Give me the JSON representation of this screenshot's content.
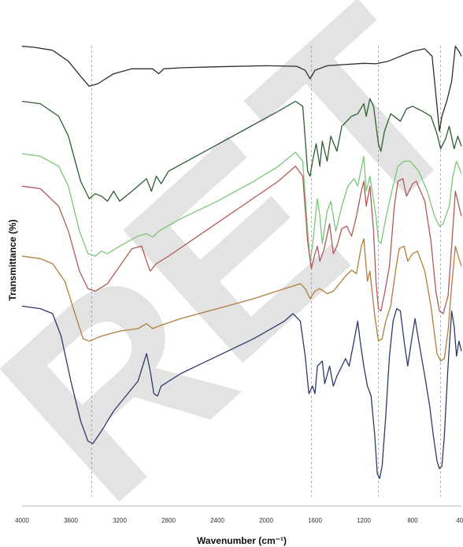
{
  "chart_data": {
    "type": "line",
    "xlabel": "Wavenumber (cm⁻¹)",
    "ylabel": "Transmittance (%)",
    "xlim": [
      4000,
      400
    ],
    "x_reversed": true,
    "x_ticks": [
      4000,
      3600,
      3200,
      2800,
      2400,
      2000,
      1600,
      1200,
      800,
      400
    ],
    "y_ticks_shown": false,
    "ylim": [
      0,
      100
    ],
    "grid": false,
    "reference_lines_x": [
      3430,
      1630,
      1080,
      570
    ],
    "watermark": "RET",
    "series": [
      {
        "color": "#2e2e2e",
        "points": [
          [
            4000,
            92
          ],
          [
            3900,
            91.8
          ],
          [
            3750,
            91.2
          ],
          [
            3620,
            89
          ],
          [
            3520,
            86
          ],
          [
            3450,
            84
          ],
          [
            3380,
            84.5
          ],
          [
            3250,
            86.5
          ],
          [
            3100,
            87.5
          ],
          [
            2930,
            87.5
          ],
          [
            2880,
            86.5
          ],
          [
            2840,
            87.5
          ],
          [
            2700,
            87.7
          ],
          [
            2400,
            87.9
          ],
          [
            2000,
            88.1
          ],
          [
            1750,
            88
          ],
          [
            1680,
            87.2
          ],
          [
            1640,
            85.5
          ],
          [
            1600,
            87.2
          ],
          [
            1500,
            88.1
          ],
          [
            1200,
            88.6
          ],
          [
            1100,
            88.5
          ],
          [
            1000,
            89
          ],
          [
            800,
            91
          ],
          [
            700,
            91.5
          ],
          [
            640,
            90
          ],
          [
            600,
            80
          ],
          [
            580,
            75
          ],
          [
            560,
            78
          ],
          [
            520,
            81
          ],
          [
            480,
            85
          ],
          [
            450,
            92
          ],
          [
            420,
            91
          ],
          [
            400,
            90
          ]
        ]
      },
      {
        "color": "#2f5d31",
        "points": [
          [
            4000,
            81
          ],
          [
            3850,
            80.5
          ],
          [
            3700,
            78
          ],
          [
            3620,
            74
          ],
          [
            3520,
            65
          ],
          [
            3450,
            61.5
          ],
          [
            3400,
            62.5
          ],
          [
            3350,
            62
          ],
          [
            3300,
            61
          ],
          [
            3250,
            63
          ],
          [
            3200,
            61
          ],
          [
            3100,
            63
          ],
          [
            2980,
            65.5
          ],
          [
            2940,
            63
          ],
          [
            2900,
            66
          ],
          [
            2860,
            64.5
          ],
          [
            2800,
            67
          ],
          [
            2500,
            71
          ],
          [
            2200,
            75
          ],
          [
            1900,
            79
          ],
          [
            1760,
            81
          ],
          [
            1700,
            80
          ],
          [
            1660,
            67
          ],
          [
            1640,
            66
          ],
          [
            1620,
            69
          ],
          [
            1590,
            72.5
          ],
          [
            1560,
            68
          ],
          [
            1540,
            73
          ],
          [
            1500,
            69
          ],
          [
            1470,
            74
          ],
          [
            1420,
            71
          ],
          [
            1380,
            76
          ],
          [
            1300,
            78
          ],
          [
            1250,
            78.5
          ],
          [
            1200,
            80.5
          ],
          [
            1180,
            78
          ],
          [
            1150,
            81.5
          ],
          [
            1120,
            80
          ],
          [
            1080,
            72.5
          ],
          [
            1060,
            71
          ],
          [
            1030,
            75
          ],
          [
            980,
            78.5
          ],
          [
            900,
            77
          ],
          [
            850,
            79.5
          ],
          [
            800,
            80
          ],
          [
            720,
            79
          ],
          [
            650,
            78
          ],
          [
            600,
            74.5
          ],
          [
            570,
            71.5
          ],
          [
            530,
            73.5
          ],
          [
            500,
            76
          ],
          [
            460,
            71.5
          ],
          [
            430,
            74
          ],
          [
            400,
            72
          ]
        ]
      },
      {
        "color": "#7cc57c",
        "points": [
          [
            4000,
            70.5
          ],
          [
            3850,
            70
          ],
          [
            3700,
            68
          ],
          [
            3620,
            64
          ],
          [
            3530,
            55
          ],
          [
            3460,
            50.5
          ],
          [
            3400,
            50
          ],
          [
            3350,
            51
          ],
          [
            3300,
            50.5
          ],
          [
            3200,
            52
          ],
          [
            3050,
            54
          ],
          [
            2980,
            54.5
          ],
          [
            2930,
            53.8
          ],
          [
            2880,
            55
          ],
          [
            2700,
            57.5
          ],
          [
            2400,
            61
          ],
          [
            2100,
            65
          ],
          [
            1900,
            68
          ],
          [
            1760,
            70.8
          ],
          [
            1700,
            69
          ],
          [
            1660,
            55
          ],
          [
            1640,
            49
          ],
          [
            1620,
            52
          ],
          [
            1600,
            57
          ],
          [
            1580,
            61.5
          ],
          [
            1560,
            58
          ],
          [
            1540,
            52.5
          ],
          [
            1500,
            59
          ],
          [
            1470,
            61
          ],
          [
            1430,
            55
          ],
          [
            1380,
            60
          ],
          [
            1330,
            64
          ],
          [
            1280,
            65.5
          ],
          [
            1250,
            64
          ],
          [
            1200,
            70
          ],
          [
            1180,
            63
          ],
          [
            1150,
            66
          ],
          [
            1100,
            58
          ],
          [
            1080,
            53
          ],
          [
            1060,
            52.5
          ],
          [
            1020,
            57.5
          ],
          [
            970,
            63
          ],
          [
            920,
            68
          ],
          [
            870,
            69
          ],
          [
            820,
            69
          ],
          [
            750,
            67
          ],
          [
            680,
            63
          ],
          [
            620,
            58
          ],
          [
            580,
            56
          ],
          [
            550,
            56.5
          ],
          [
            500,
            60
          ],
          [
            470,
            66
          ],
          [
            440,
            69
          ],
          [
            400,
            66.5
          ]
        ]
      },
      {
        "color": "#b05a5a",
        "points": [
          [
            4000,
            64
          ],
          [
            3850,
            63.5
          ],
          [
            3700,
            60
          ],
          [
            3620,
            55
          ],
          [
            3530,
            47
          ],
          [
            3460,
            43.5
          ],
          [
            3400,
            43
          ],
          [
            3300,
            44.5
          ],
          [
            3200,
            48
          ],
          [
            3100,
            51.5
          ],
          [
            3020,
            52
          ],
          [
            2980,
            49
          ],
          [
            2950,
            47
          ],
          [
            2900,
            48.5
          ],
          [
            2800,
            50
          ],
          [
            2500,
            55
          ],
          [
            2200,
            60
          ],
          [
            1900,
            65
          ],
          [
            1760,
            68
          ],
          [
            1700,
            66
          ],
          [
            1660,
            53
          ],
          [
            1630,
            47.5
          ],
          [
            1600,
            50.5
          ],
          [
            1580,
            52
          ],
          [
            1560,
            49
          ],
          [
            1530,
            51
          ],
          [
            1480,
            56.5
          ],
          [
            1450,
            50.5
          ],
          [
            1420,
            52
          ],
          [
            1380,
            55.5
          ],
          [
            1340,
            56
          ],
          [
            1300,
            54
          ],
          [
            1260,
            58
          ],
          [
            1220,
            63
          ],
          [
            1200,
            65
          ],
          [
            1180,
            60
          ],
          [
            1150,
            64
          ],
          [
            1120,
            55
          ],
          [
            1100,
            45
          ],
          [
            1080,
            39.5
          ],
          [
            1060,
            39
          ],
          [
            1030,
            42.5
          ],
          [
            990,
            48
          ],
          [
            950,
            60
          ],
          [
            920,
            65
          ],
          [
            880,
            65.5
          ],
          [
            850,
            62
          ],
          [
            800,
            64.5
          ],
          [
            770,
            65
          ],
          [
            700,
            61
          ],
          [
            650,
            53
          ],
          [
            610,
            43
          ],
          [
            580,
            39
          ],
          [
            550,
            38.5
          ],
          [
            510,
            42
          ],
          [
            480,
            52
          ],
          [
            450,
            63
          ],
          [
            420,
            60
          ],
          [
            400,
            58
          ]
        ]
      },
      {
        "color": "#b07e3c",
        "points": [
          [
            4000,
            50
          ],
          [
            3850,
            49.5
          ],
          [
            3750,
            48.5
          ],
          [
            3650,
            45
          ],
          [
            3560,
            38
          ],
          [
            3500,
            33.5
          ],
          [
            3450,
            33
          ],
          [
            3350,
            34
          ],
          [
            3200,
            35
          ],
          [
            3050,
            35.5
          ],
          [
            2980,
            36.5
          ],
          [
            2930,
            35.5
          ],
          [
            2880,
            36
          ],
          [
            2700,
            37.5
          ],
          [
            2400,
            39.5
          ],
          [
            2100,
            41.5
          ],
          [
            1850,
            43.5
          ],
          [
            1780,
            44
          ],
          [
            1720,
            44.5
          ],
          [
            1680,
            43.5
          ],
          [
            1640,
            41.5
          ],
          [
            1600,
            43
          ],
          [
            1560,
            43.5
          ],
          [
            1500,
            42.5
          ],
          [
            1450,
            43
          ],
          [
            1400,
            44.5
          ],
          [
            1350,
            46
          ],
          [
            1300,
            47.2
          ],
          [
            1260,
            46.5
          ],
          [
            1220,
            52
          ],
          [
            1200,
            53.5
          ],
          [
            1170,
            45
          ],
          [
            1150,
            47
          ],
          [
            1110,
            38
          ],
          [
            1080,
            33
          ],
          [
            1050,
            33.5
          ],
          [
            1020,
            37
          ],
          [
            980,
            40
          ],
          [
            940,
            47
          ],
          [
            910,
            51.5
          ],
          [
            870,
            52
          ],
          [
            840,
            49
          ],
          [
            800,
            50.5
          ],
          [
            760,
            51
          ],
          [
            700,
            47
          ],
          [
            650,
            40
          ],
          [
            600,
            30.5
          ],
          [
            570,
            29
          ],
          [
            540,
            29.5
          ],
          [
            510,
            35
          ],
          [
            480,
            44
          ],
          [
            450,
            52
          ],
          [
            420,
            49.5
          ],
          [
            400,
            48
          ]
        ]
      },
      {
        "color": "#2d3a66",
        "points": [
          [
            4000,
            40
          ],
          [
            3850,
            39.5
          ],
          [
            3750,
            38.5
          ],
          [
            3680,
            34
          ],
          [
            3600,
            25
          ],
          [
            3520,
            17
          ],
          [
            3460,
            13
          ],
          [
            3420,
            12.5
          ],
          [
            3350,
            15
          ],
          [
            3250,
            19
          ],
          [
            3150,
            22
          ],
          [
            3050,
            25
          ],
          [
            2980,
            30.5
          ],
          [
            2950,
            27
          ],
          [
            2920,
            22.5
          ],
          [
            2890,
            22
          ],
          [
            2860,
            24
          ],
          [
            2700,
            26.5
          ],
          [
            2400,
            30
          ],
          [
            2100,
            33.5
          ],
          [
            1850,
            37
          ],
          [
            1780,
            38.5
          ],
          [
            1720,
            37
          ],
          [
            1680,
            30
          ],
          [
            1650,
            22.5
          ],
          [
            1620,
            24
          ],
          [
            1600,
            22.5
          ],
          [
            1580,
            28
          ],
          [
            1560,
            28.5
          ],
          [
            1540,
            29
          ],
          [
            1520,
            24.5
          ],
          [
            1480,
            28
          ],
          [
            1450,
            24
          ],
          [
            1420,
            26
          ],
          [
            1380,
            28
          ],
          [
            1350,
            29.5
          ],
          [
            1320,
            28
          ],
          [
            1280,
            33
          ],
          [
            1250,
            37
          ],
          [
            1230,
            33
          ],
          [
            1200,
            28
          ],
          [
            1170,
            24
          ],
          [
            1140,
            22
          ],
          [
            1110,
            14
          ],
          [
            1090,
            6.5
          ],
          [
            1070,
            5.5
          ],
          [
            1050,
            8
          ],
          [
            1020,
            18
          ],
          [
            990,
            30
          ],
          [
            960,
            37
          ],
          [
            930,
            39.5
          ],
          [
            900,
            39
          ],
          [
            870,
            33
          ],
          [
            840,
            28
          ],
          [
            810,
            33
          ],
          [
            780,
            37.5
          ],
          [
            750,
            33
          ],
          [
            700,
            26
          ],
          [
            660,
            20
          ],
          [
            630,
            14
          ],
          [
            600,
            9
          ],
          [
            580,
            7.5
          ],
          [
            560,
            8
          ],
          [
            540,
            14
          ],
          [
            510,
            28
          ],
          [
            480,
            39
          ],
          [
            460,
            36
          ],
          [
            440,
            30
          ],
          [
            420,
            33
          ],
          [
            400,
            31
          ]
        ]
      }
    ]
  }
}
